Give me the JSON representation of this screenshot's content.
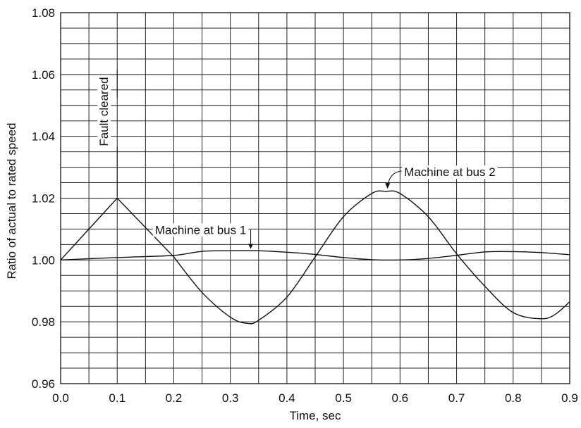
{
  "chart_data": {
    "type": "line",
    "title": "",
    "xlabel": "Time, sec",
    "ylabel": "Ratio of actual to rated speed",
    "xlim": [
      0,
      0.9
    ],
    "ylim": [
      0.96,
      1.08
    ],
    "x_ticks": [
      "0.0",
      "0.1",
      "0.2",
      "0.3",
      "0.4",
      "0.5",
      "0.6",
      "0.7",
      "0.8",
      "0.9"
    ],
    "y_ticks": [
      "0.96",
      "0.98",
      "1.00",
      "1.02",
      "1.04",
      "1.06",
      "1.08"
    ],
    "grid": true,
    "series": [
      {
        "name": "Machine at bus 1",
        "x": [
          0.0,
          0.1,
          0.2,
          0.25,
          0.3,
          0.35,
          0.4,
          0.45,
          0.5,
          0.55,
          0.6,
          0.65,
          0.7,
          0.75,
          0.8,
          0.85,
          0.9
        ],
        "y": [
          1.0,
          1.0008,
          1.0015,
          1.0028,
          1.003,
          1.003,
          1.0025,
          1.0018,
          1.0008,
          1.0001,
          1.0,
          1.0005,
          1.0015,
          1.0026,
          1.0027,
          1.0024,
          1.0017
        ]
      },
      {
        "name": "Machine at bus 2",
        "x": [
          0.0,
          0.1,
          0.2,
          0.25,
          0.3,
          0.33,
          0.35,
          0.4,
          0.45,
          0.5,
          0.55,
          0.575,
          0.6,
          0.65,
          0.7,
          0.75,
          0.8,
          0.85,
          0.875,
          0.9
        ],
        "y": [
          1.0,
          1.02,
          1.001,
          0.9895,
          0.9815,
          0.9795,
          0.9805,
          0.988,
          1.001,
          1.014,
          1.0215,
          1.0222,
          1.0215,
          1.014,
          1.002,
          0.9915,
          0.983,
          0.981,
          0.9825,
          0.9865
        ]
      }
    ],
    "annotations": [
      {
        "text": "Fault cleared"
      },
      {
        "text": "Machine at bus 1"
      },
      {
        "text": "Machine at bus 2"
      }
    ]
  }
}
